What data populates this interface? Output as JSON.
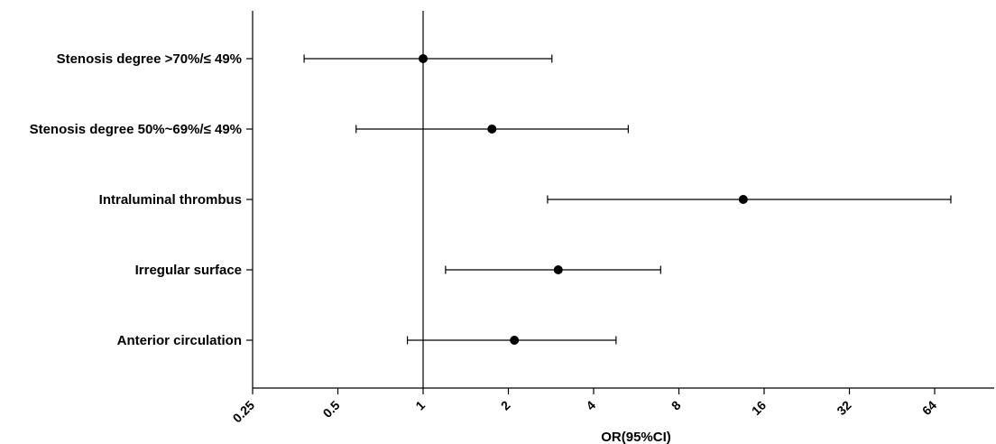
{
  "chart_data": {
    "type": "forest",
    "xlabel": "OR(95%CI)",
    "x_scale": "log2",
    "xlim": [
      0.25,
      100
    ],
    "x_ticks": [
      0.25,
      0.5,
      1,
      2,
      4,
      8,
      16,
      32,
      64
    ],
    "x_tick_labels": [
      "0.25",
      "0.5",
      "1",
      "2",
      "4",
      "8",
      "16",
      "32",
      "64"
    ],
    "reference_line": 1,
    "grid": false,
    "rows": [
      {
        "label": "Stenosis degree >70%/≤ 49%",
        "or": 1.0,
        "lower": 0.38,
        "upper": 2.85
      },
      {
        "label": "Stenosis degree 50%~69%/≤ 49%",
        "or": 1.75,
        "lower": 0.58,
        "upper": 5.3
      },
      {
        "label": "Intraluminal thrombus",
        "or": 13.5,
        "lower": 2.75,
        "upper": 73.0
      },
      {
        "label": "Irregular surface",
        "or": 3.0,
        "lower": 1.2,
        "upper": 6.9
      },
      {
        "label": "Anterior circulation",
        "or": 2.1,
        "lower": 0.88,
        "upper": 4.8
      }
    ]
  }
}
